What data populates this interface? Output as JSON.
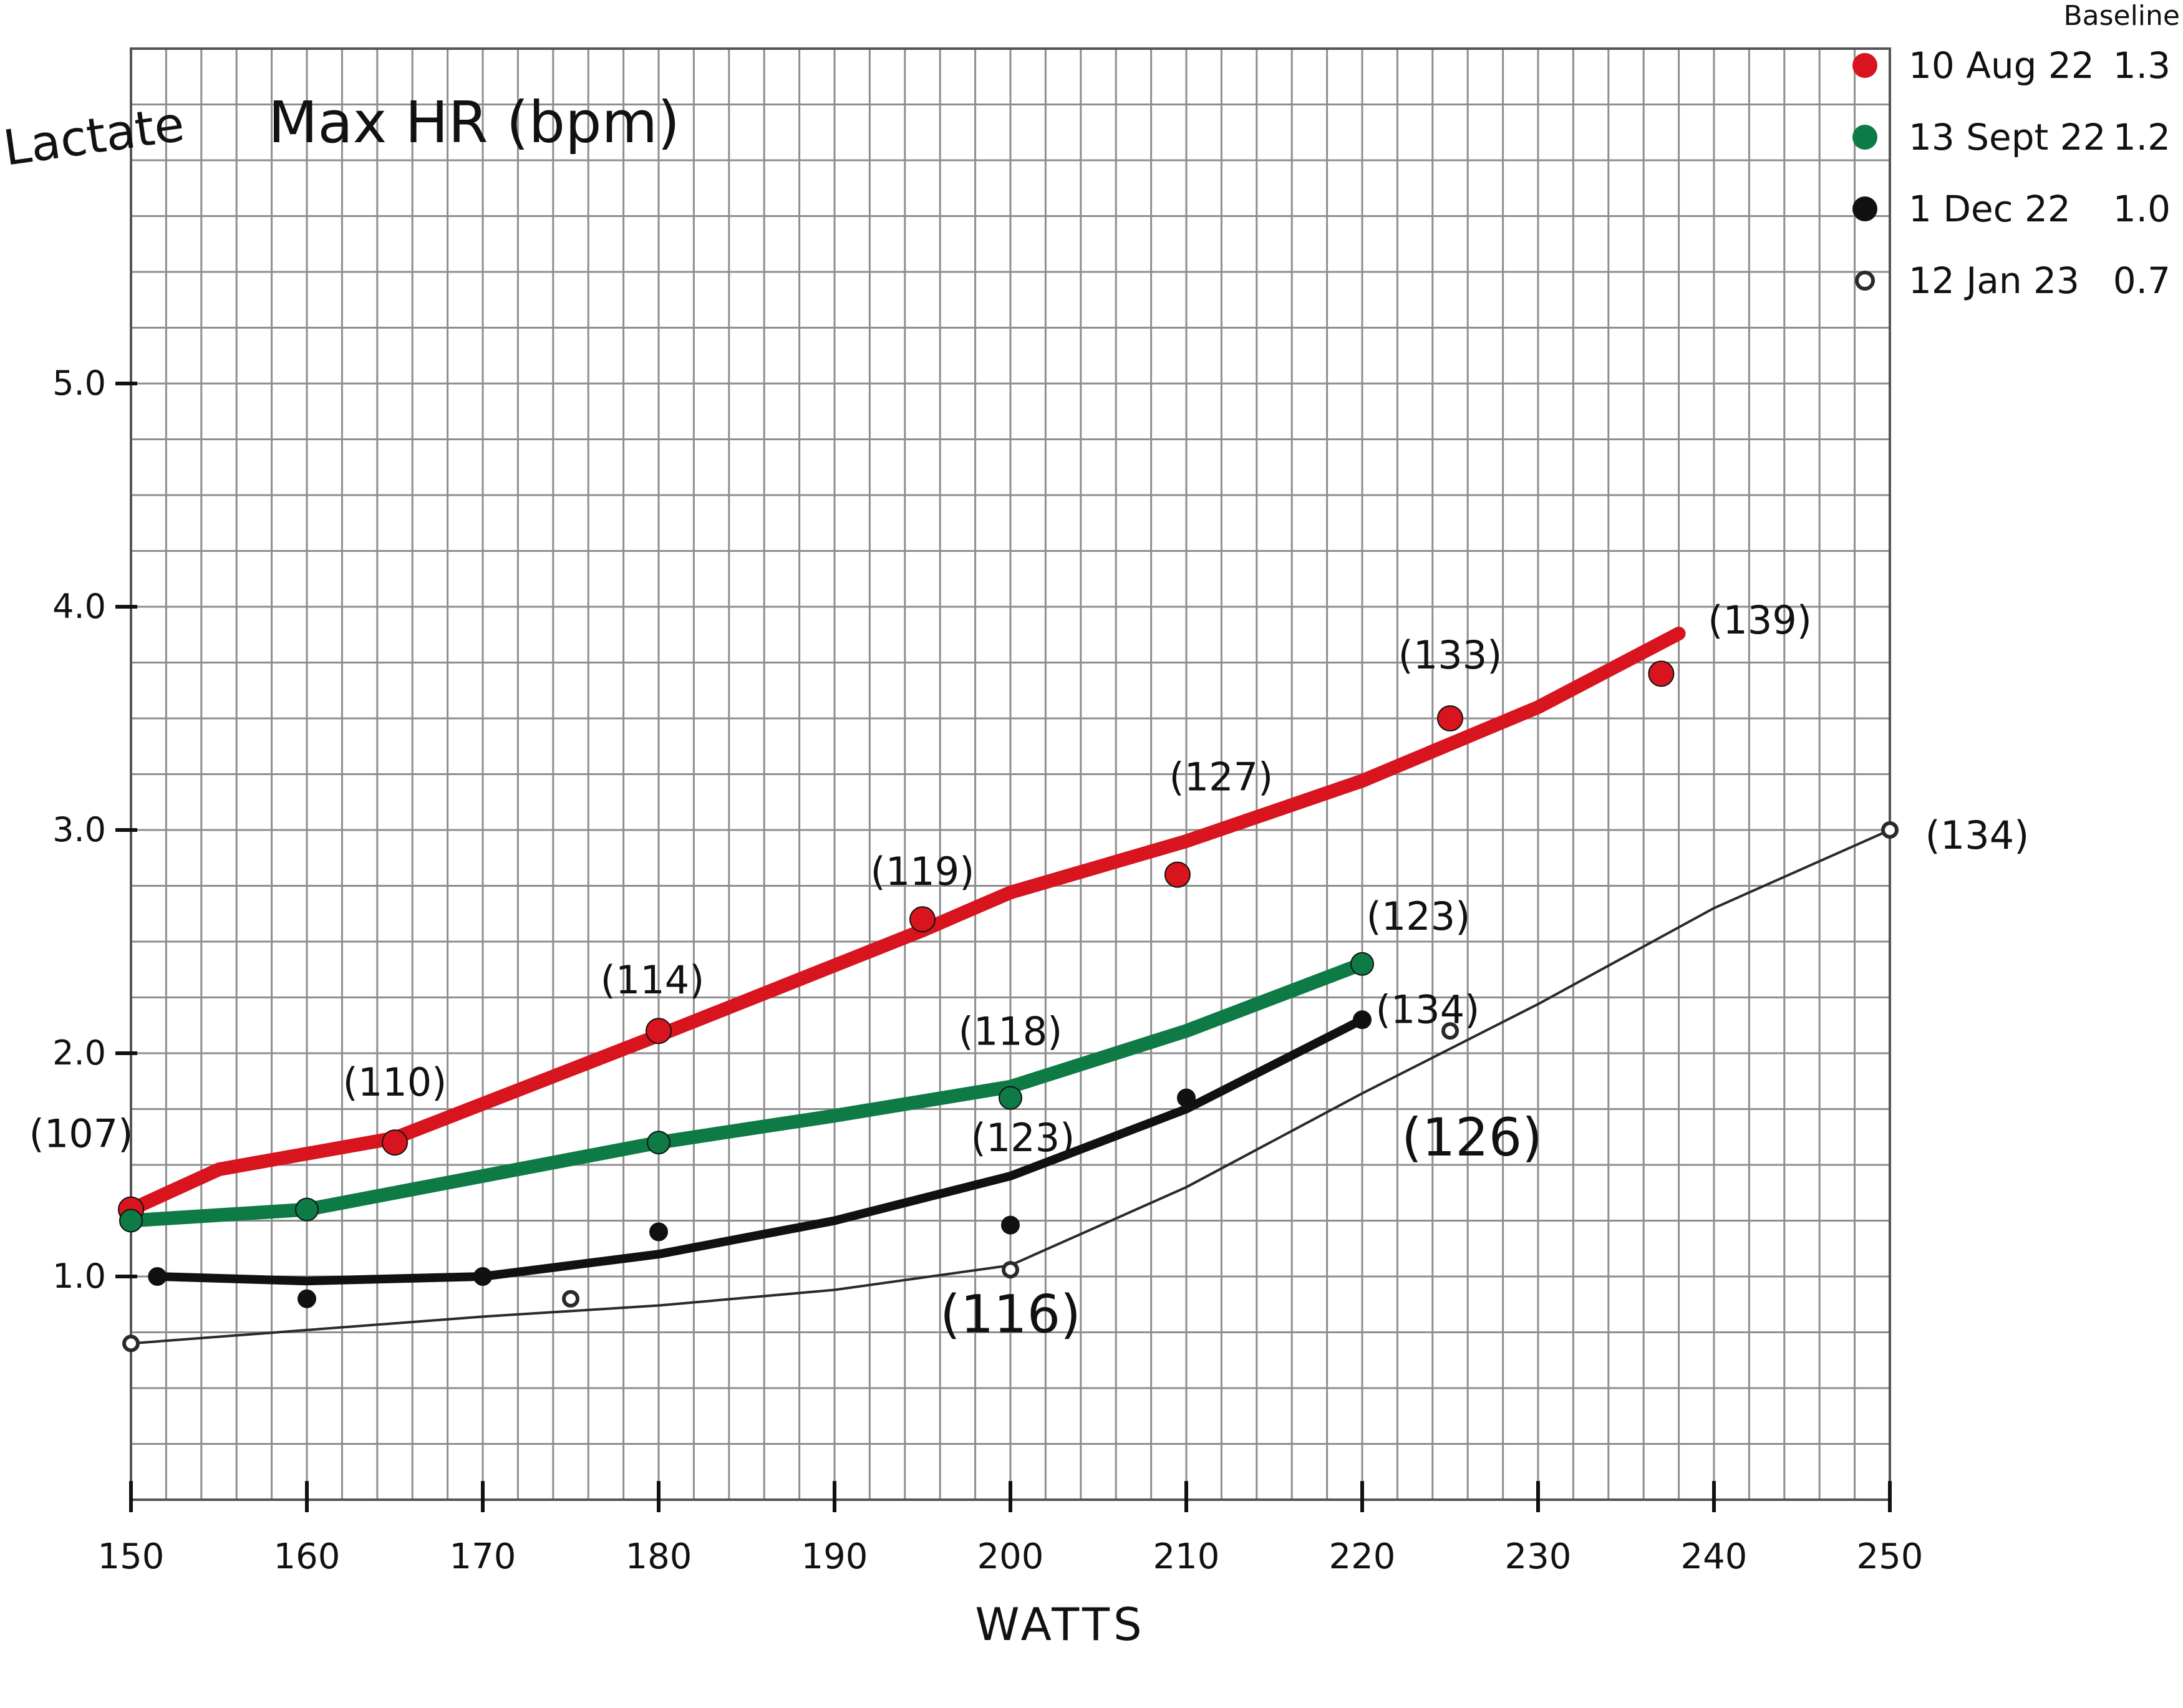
{
  "chart_data": {
    "type": "scatter",
    "title": "Max HR (bpm)",
    "xlabel": "WATTS",
    "ylabel": "Lactate",
    "xlim": [
      150,
      250
    ],
    "ylim": [
      0,
      6.5
    ],
    "x_ticks": [
      150,
      160,
      170,
      180,
      190,
      200,
      210,
      220,
      230,
      240,
      250
    ],
    "x_tick_labels": [
      "150",
      "160",
      "170",
      "180",
      "190",
      "200",
      "210",
      "220",
      "230",
      "240",
      "250"
    ],
    "y_ticks": [
      1.0,
      2.0,
      3.0,
      4.0,
      5.0
    ],
    "y_tick_labels": [
      "1.0",
      "2.0",
      "3.0",
      "4.0",
      "5.0"
    ],
    "grid": true,
    "legend_position": "top-right",
    "legend_header": "Baseline",
    "series": [
      {
        "name": "10 Aug 22",
        "baseline": "1.3",
        "color": "#d8141e",
        "points": [
          {
            "x": 150,
            "y": 1.3
          },
          {
            "x": 165,
            "y": 1.6
          },
          {
            "x": 180,
            "y": 2.1
          },
          {
            "x": 195,
            "y": 2.6
          },
          {
            "x": 209.5,
            "y": 2.8
          },
          {
            "x": 225,
            "y": 3.5
          },
          {
            "x": 237,
            "y": 3.7
          }
        ],
        "trend": [
          {
            "x": 150,
            "y": 1.3
          },
          {
            "x": 155,
            "y": 1.48
          },
          {
            "x": 160,
            "y": 1.55
          },
          {
            "x": 165,
            "y": 1.62
          },
          {
            "x": 180,
            "y": 2.08
          },
          {
            "x": 195,
            "y": 2.55
          },
          {
            "x": 200,
            "y": 2.72
          },
          {
            "x": 210,
            "y": 2.95
          },
          {
            "x": 220,
            "y": 3.22
          },
          {
            "x": 230,
            "y": 3.55
          },
          {
            "x": 238,
            "y": 3.88
          }
        ],
        "annotations": [
          {
            "x": 150,
            "y": 1.3,
            "text": "(107)"
          },
          {
            "x": 165,
            "y": 1.6,
            "text": "(110)"
          },
          {
            "x": 180,
            "y": 2.1,
            "text": "(114)"
          },
          {
            "x": 195,
            "y": 2.6,
            "text": "(119)"
          },
          {
            "x": 209.5,
            "y": 2.8,
            "text": "(127)"
          },
          {
            "x": 225,
            "y": 3.5,
            "text": "(133)"
          },
          {
            "x": 238,
            "y": 3.88,
            "text": "(139)"
          }
        ]
      },
      {
        "name": "13 Sept 22",
        "baseline": "1.2",
        "color": "#0e7a45",
        "points": [
          {
            "x": 150,
            "y": 1.25
          },
          {
            "x": 160,
            "y": 1.3
          },
          {
            "x": 180,
            "y": 1.6
          },
          {
            "x": 200,
            "y": 1.8
          },
          {
            "x": 220,
            "y": 2.4
          }
        ],
        "trend": [
          {
            "x": 150,
            "y": 1.25
          },
          {
            "x": 160,
            "y": 1.3
          },
          {
            "x": 170,
            "y": 1.45
          },
          {
            "x": 180,
            "y": 1.6
          },
          {
            "x": 190,
            "y": 1.72
          },
          {
            "x": 200,
            "y": 1.85
          },
          {
            "x": 210,
            "y": 2.1
          },
          {
            "x": 220,
            "y": 2.4
          }
        ],
        "annotations": [
          {
            "x": 200,
            "y": 1.8,
            "text": "(118)"
          },
          {
            "x": 220,
            "y": 2.4,
            "text": "(123)"
          }
        ]
      },
      {
        "name": "1 Dec 22",
        "baseline": "1.0",
        "color": "#111111",
        "points": [
          {
            "x": 151.5,
            "y": 1.0
          },
          {
            "x": 160,
            "y": 0.9
          },
          {
            "x": 170,
            "y": 1.0
          },
          {
            "x": 180,
            "y": 1.2
          },
          {
            "x": 200,
            "y": 1.23
          },
          {
            "x": 210,
            "y": 1.8
          },
          {
            "x": 220,
            "y": 2.15
          }
        ],
        "trend": [
          {
            "x": 151.5,
            "y": 1.0
          },
          {
            "x": 160,
            "y": 0.98
          },
          {
            "x": 170,
            "y": 1.0
          },
          {
            "x": 180,
            "y": 1.1
          },
          {
            "x": 190,
            "y": 1.25
          },
          {
            "x": 200,
            "y": 1.45
          },
          {
            "x": 210,
            "y": 1.75
          },
          {
            "x": 220,
            "y": 2.15
          }
        ],
        "annotations": [
          {
            "x": 200,
            "y": 1.45,
            "text": "(123)"
          },
          {
            "x": 220,
            "y": 2.15,
            "text": "(134)"
          }
        ]
      },
      {
        "name": "12 Jan 23",
        "baseline": "0.7",
        "color": "#2a2a2a",
        "points": [
          {
            "x": 150,
            "y": 0.7
          },
          {
            "x": 175,
            "y": 0.9
          },
          {
            "x": 200,
            "y": 1.03
          },
          {
            "x": 225,
            "y": 2.1
          },
          {
            "x": 250,
            "y": 3.0
          }
        ],
        "trend": [
          {
            "x": 150,
            "y": 0.7
          },
          {
            "x": 160,
            "y": 0.76
          },
          {
            "x": 170,
            "y": 0.82
          },
          {
            "x": 180,
            "y": 0.87
          },
          {
            "x": 190,
            "y": 0.94
          },
          {
            "x": 200,
            "y": 1.05
          },
          {
            "x": 210,
            "y": 1.4
          },
          {
            "x": 220,
            "y": 1.82
          },
          {
            "x": 230,
            "y": 2.22
          },
          {
            "x": 240,
            "y": 2.65
          },
          {
            "x": 250,
            "y": 3.0
          }
        ],
        "annotations": [
          {
            "x": 200,
            "y": 1.03,
            "text": "(116)"
          },
          {
            "x": 225,
            "y": 2.1,
            "text": "(126)"
          },
          {
            "x": 250,
            "y": 3.0,
            "text": "(134)"
          }
        ]
      }
    ]
  }
}
